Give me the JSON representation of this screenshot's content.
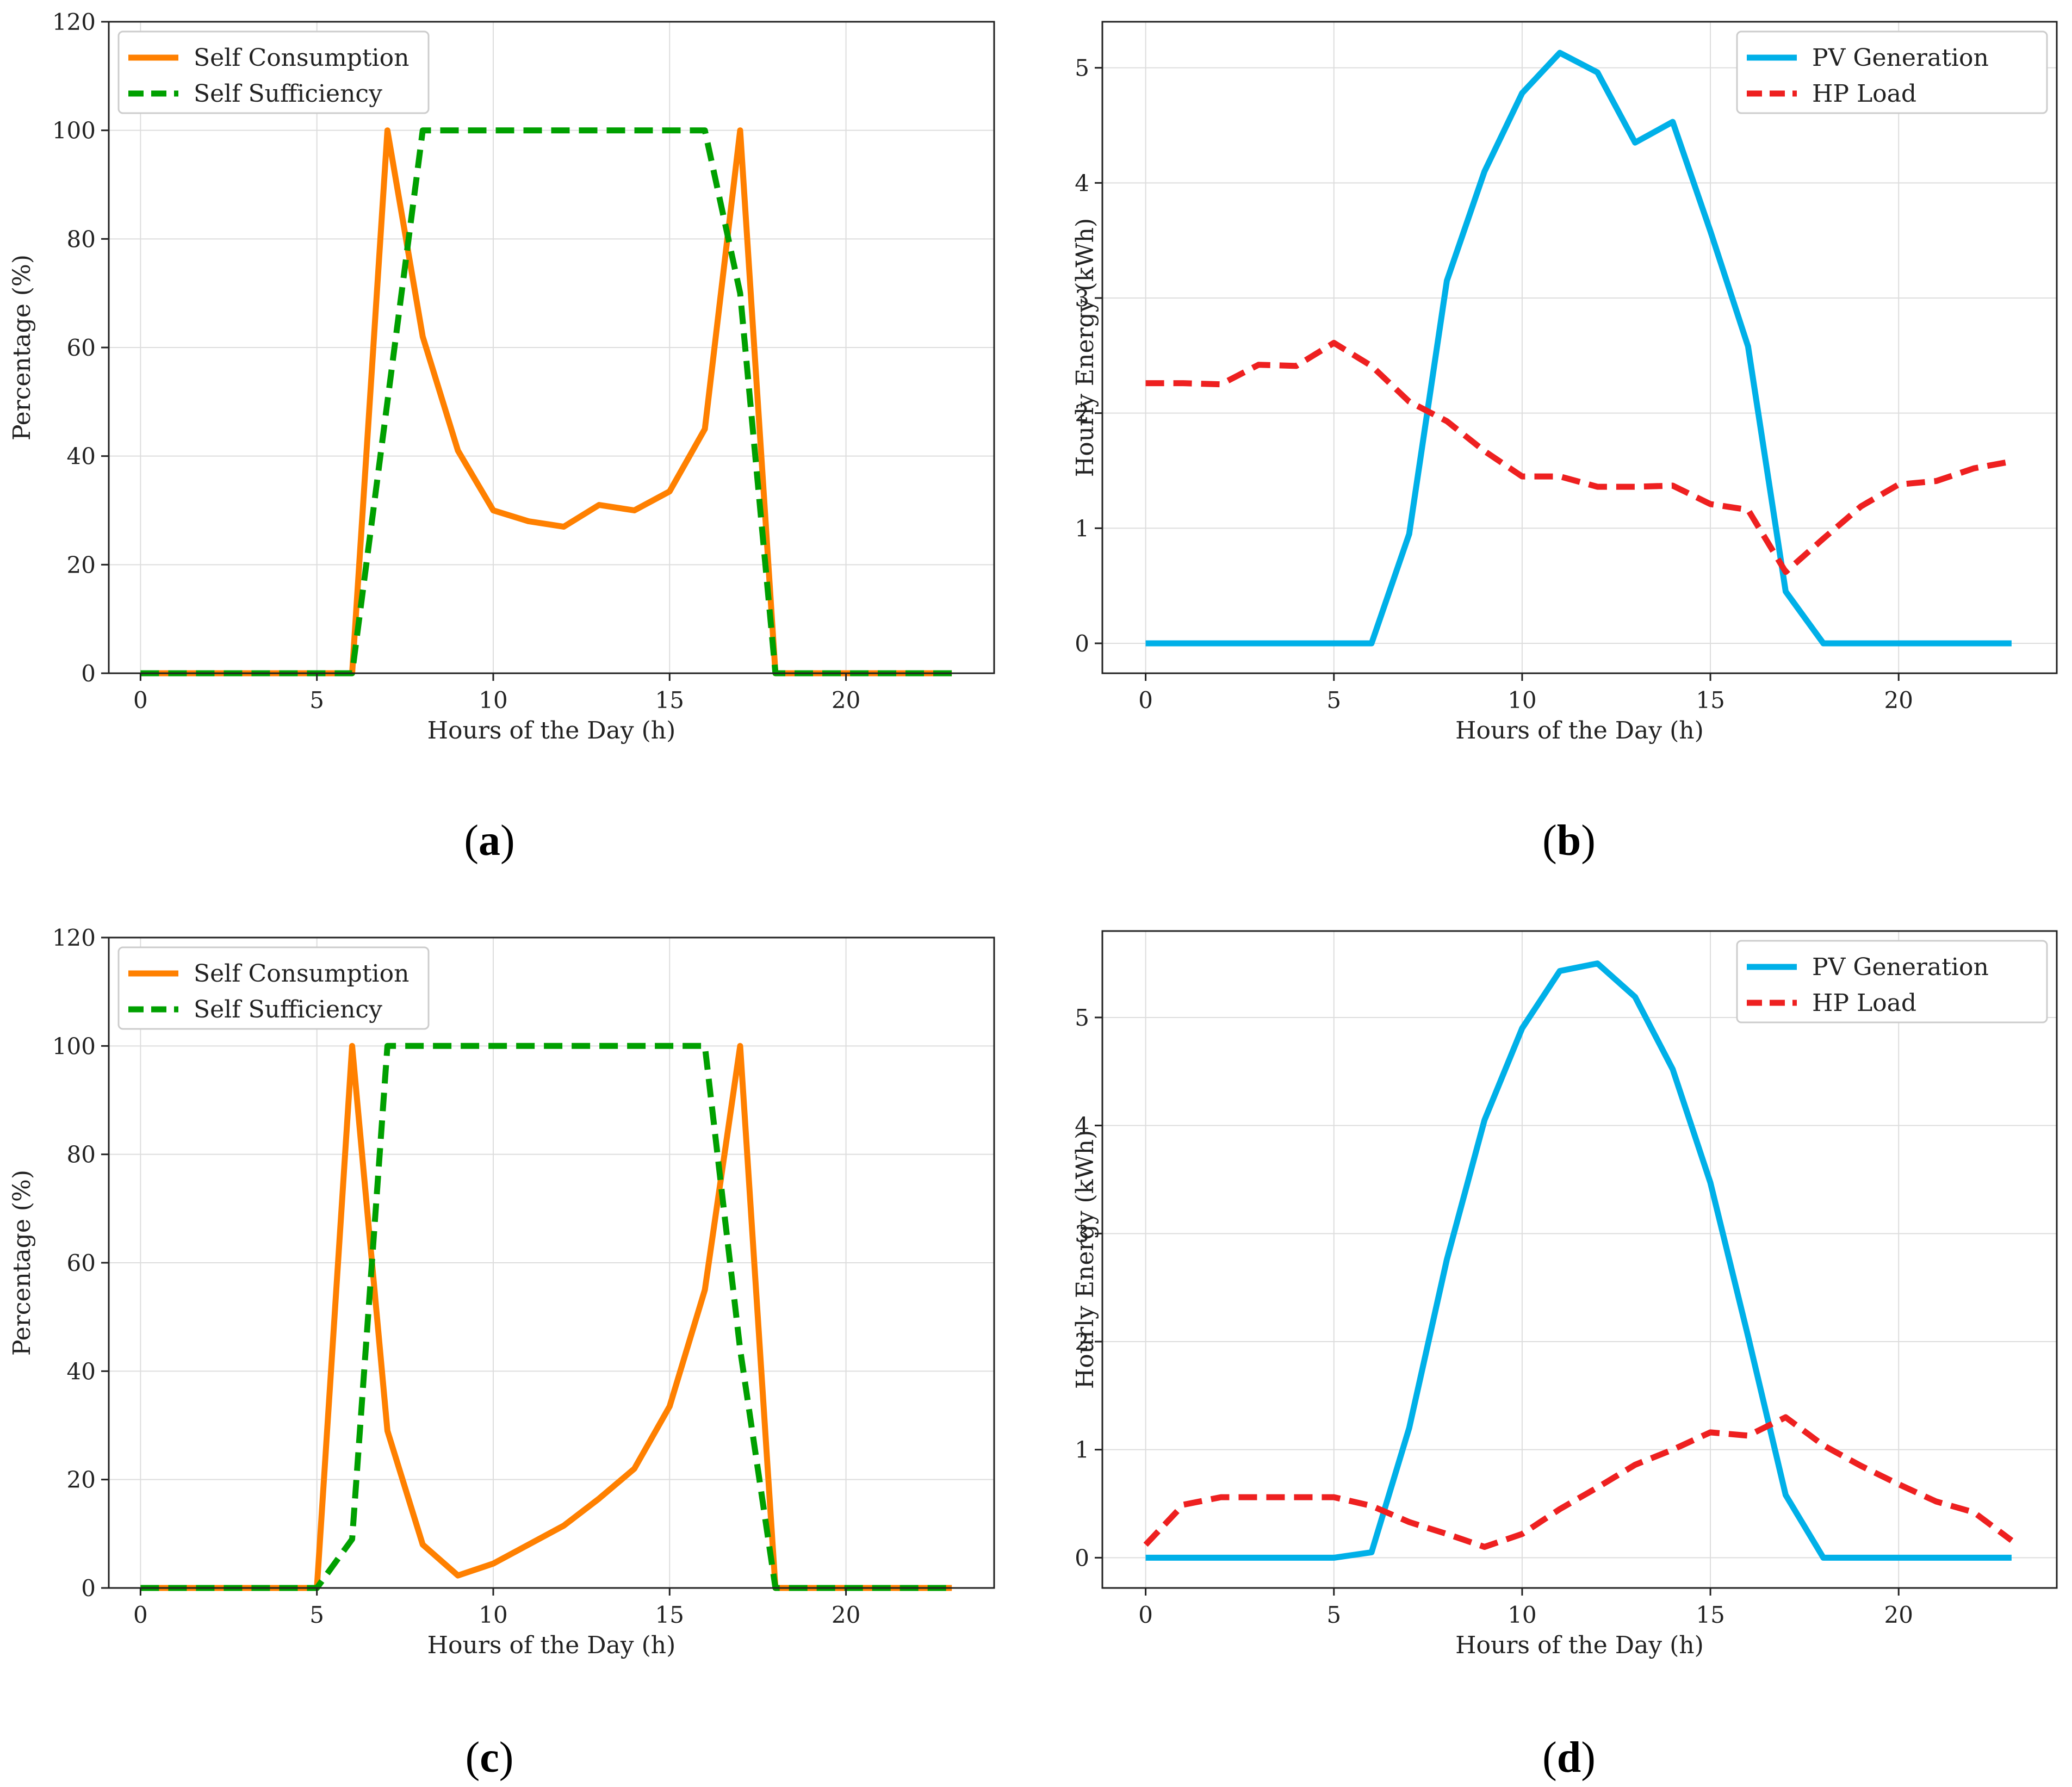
{
  "colors": {
    "self_consumption": "#ff8000",
    "self_sufficiency": "#00a000",
    "pv_generation": "#00b0e8",
    "hp_load": "#ee2020"
  },
  "chart_data": [
    {
      "panel_label": "a",
      "type": "line",
      "xlabel": "Hours of the Day (h)",
      "ylabel": "Percentage (%)",
      "xlim": [
        -0.9,
        24.2
      ],
      "ylim": [
        0,
        120
      ],
      "xticks": [
        0,
        5,
        10,
        15,
        20
      ],
      "yticks": [
        0,
        20,
        40,
        60,
        80,
        100,
        120
      ],
      "grid": true,
      "legend_position": "top-left",
      "x": [
        0,
        1,
        2,
        3,
        4,
        5,
        6,
        7,
        8,
        9,
        10,
        11,
        12,
        13,
        14,
        15,
        16,
        17,
        18,
        19,
        20,
        21,
        22,
        23
      ],
      "series": [
        {
          "name": "Self Consumption",
          "style": "solid",
          "color_key": "self_consumption",
          "values": [
            0,
            0,
            0,
            0,
            0,
            0,
            0,
            100,
            62,
            41,
            30,
            28,
            27,
            31,
            30,
            33.5,
            45,
            100,
            0,
            0,
            0,
            0,
            0,
            0
          ]
        },
        {
          "name": "Self Sufficiency",
          "style": "dashed",
          "color_key": "self_sufficiency",
          "values": [
            0,
            0,
            0,
            0,
            0,
            0,
            0,
            50,
            100,
            100,
            100,
            100,
            100,
            100,
            100,
            100,
            100,
            70,
            0,
            0,
            0,
            0,
            0,
            0
          ]
        }
      ]
    },
    {
      "panel_label": "b",
      "type": "line",
      "xlabel": "Hours of the Day (h)",
      "ylabel": "Hourly Energy (kWh)",
      "xlim": [
        -1.15,
        24.2
      ],
      "ylim": [
        -0.26,
        5.4
      ],
      "xticks": [
        0,
        5,
        10,
        15,
        20
      ],
      "yticks": [
        0,
        1,
        2,
        3,
        4,
        5
      ],
      "grid": true,
      "legend_position": "top-right",
      "x": [
        0,
        1,
        2,
        3,
        4,
        5,
        6,
        7,
        8,
        9,
        10,
        11,
        12,
        13,
        14,
        15,
        16,
        17,
        18,
        19,
        20,
        21,
        22,
        23
      ],
      "series": [
        {
          "name": "PV Generation",
          "style": "solid",
          "color_key": "pv_generation",
          "values": [
            0,
            0,
            0,
            0,
            0,
            0,
            0,
            0.95,
            3.15,
            4.1,
            4.78,
            5.13,
            4.96,
            4.35,
            4.53,
            3.58,
            2.58,
            0.45,
            0,
            0,
            0,
            0,
            0,
            0
          ]
        },
        {
          "name": "HP Load",
          "style": "dashed",
          "color_key": "hp_load",
          "values": [
            2.26,
            2.26,
            2.25,
            2.42,
            2.41,
            2.61,
            2.41,
            2.1,
            1.93,
            1.67,
            1.45,
            1.45,
            1.36,
            1.36,
            1.37,
            1.21,
            1.16,
            0.62,
            0.91,
            1.19,
            1.38,
            1.41,
            1.52,
            1.58
          ]
        }
      ]
    },
    {
      "panel_label": "c",
      "type": "line",
      "xlabel": "Hours of the Day (h)",
      "ylabel": "Percentage (%)",
      "xlim": [
        -0.9,
        24.2
      ],
      "ylim": [
        0,
        120
      ],
      "xticks": [
        0,
        5,
        10,
        15,
        20
      ],
      "yticks": [
        0,
        20,
        40,
        60,
        80,
        100,
        120
      ],
      "grid": true,
      "legend_position": "top-left",
      "x": [
        0,
        1,
        2,
        3,
        4,
        5,
        6,
        7,
        8,
        9,
        10,
        11,
        12,
        13,
        14,
        15,
        16,
        17,
        18,
        19,
        20,
        21,
        22,
        23
      ],
      "series": [
        {
          "name": "Self Consumption",
          "style": "solid",
          "color_key": "self_consumption",
          "values": [
            0,
            0,
            0,
            0,
            0,
            0,
            100,
            29,
            8,
            2.3,
            4.5,
            8,
            11.5,
            16.5,
            22,
            33.5,
            55,
            100,
            0,
            0,
            0,
            0,
            0,
            0
          ]
        },
        {
          "name": "Self Sufficiency",
          "style": "dashed",
          "color_key": "self_sufficiency",
          "values": [
            0,
            0,
            0,
            0,
            0,
            0,
            9,
            100,
            100,
            100,
            100,
            100,
            100,
            100,
            100,
            100,
            100,
            44,
            0,
            0,
            0,
            0,
            0,
            0
          ]
        }
      ]
    },
    {
      "panel_label": "d",
      "type": "line",
      "xlabel": "Hours of the Day (h)",
      "ylabel": "Hourly Energy (kWh)",
      "xlim": [
        -1.15,
        24.2
      ],
      "ylim": [
        -0.28,
        5.8
      ],
      "xticks": [
        0,
        5,
        10,
        15,
        20
      ],
      "yticks": [
        0,
        1,
        2,
        3,
        4,
        5
      ],
      "grid": true,
      "legend_position": "top-right",
      "x": [
        0,
        1,
        2,
        3,
        4,
        5,
        6,
        7,
        8,
        9,
        10,
        11,
        12,
        13,
        14,
        15,
        16,
        17,
        18,
        19,
        20,
        21,
        22,
        23
      ],
      "series": [
        {
          "name": "PV Generation",
          "style": "solid",
          "color_key": "pv_generation",
          "values": [
            0,
            0,
            0,
            0,
            0,
            0,
            0.05,
            1.2,
            2.76,
            4.05,
            4.9,
            5.43,
            5.5,
            5.19,
            4.52,
            3.47,
            2.05,
            0.58,
            0,
            0,
            0,
            0,
            0,
            0
          ]
        },
        {
          "name": "HP Load",
          "style": "dashed",
          "color_key": "hp_load",
          "values": [
            0.12,
            0.49,
            0.56,
            0.56,
            0.56,
            0.56,
            0.48,
            0.33,
            0.22,
            0.1,
            0.22,
            0.45,
            0.65,
            0.86,
            1,
            1.16,
            1.13,
            1.3,
            1.04,
            0.85,
            0.68,
            0.52,
            0.42,
            0.16
          ]
        }
      ]
    }
  ]
}
